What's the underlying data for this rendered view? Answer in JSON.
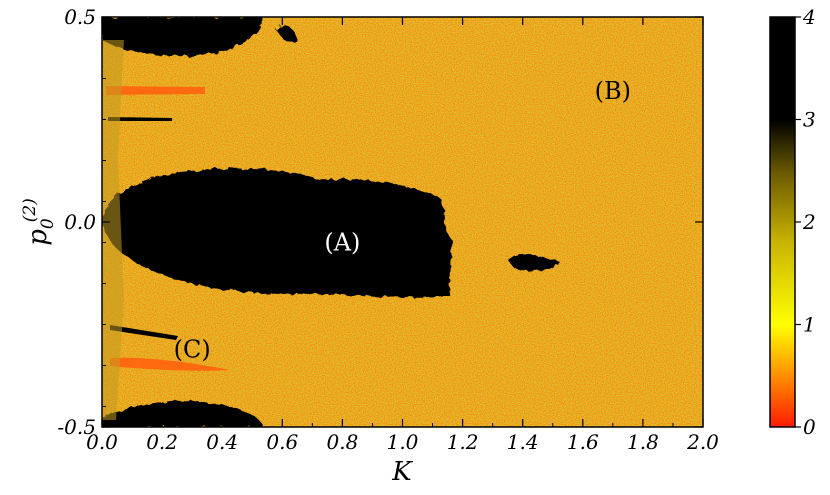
{
  "chart_data": {
    "type": "heatmap",
    "title": "",
    "xlabel": "K",
    "ylabel_main": "p",
    "ylabel_sub": "0",
    "ylabel_sup": "(2)",
    "xlim": [
      0.0,
      2.0
    ],
    "ylim": [
      -0.5,
      0.5
    ],
    "x_ticks": [
      "0.0",
      "0.2",
      "0.4",
      "0.6",
      "0.8",
      "1.0",
      "1.2",
      "1.4",
      "1.6",
      "1.8",
      "2.0"
    ],
    "y_ticks": [
      "-0.5",
      "0.0",
      "0.5"
    ],
    "colorbar": {
      "range": [
        0,
        4
      ],
      "ticks": [
        "0",
        "1",
        "2",
        "3",
        "4"
      ],
      "colors": [
        "#ff2200",
        "#ffff00",
        "#000000"
      ]
    },
    "annotations": [
      {
        "text": "(A)",
        "x": 0.8,
        "y": -0.07,
        "color": "#ffffff"
      },
      {
        "text": "(B)",
        "x": 1.7,
        "y": 0.3,
        "color": "#000000"
      },
      {
        "text": "(C)",
        "x": 0.3,
        "y": -0.33,
        "color": "#000000"
      }
    ],
    "background_value": 1.6,
    "grid": false
  }
}
